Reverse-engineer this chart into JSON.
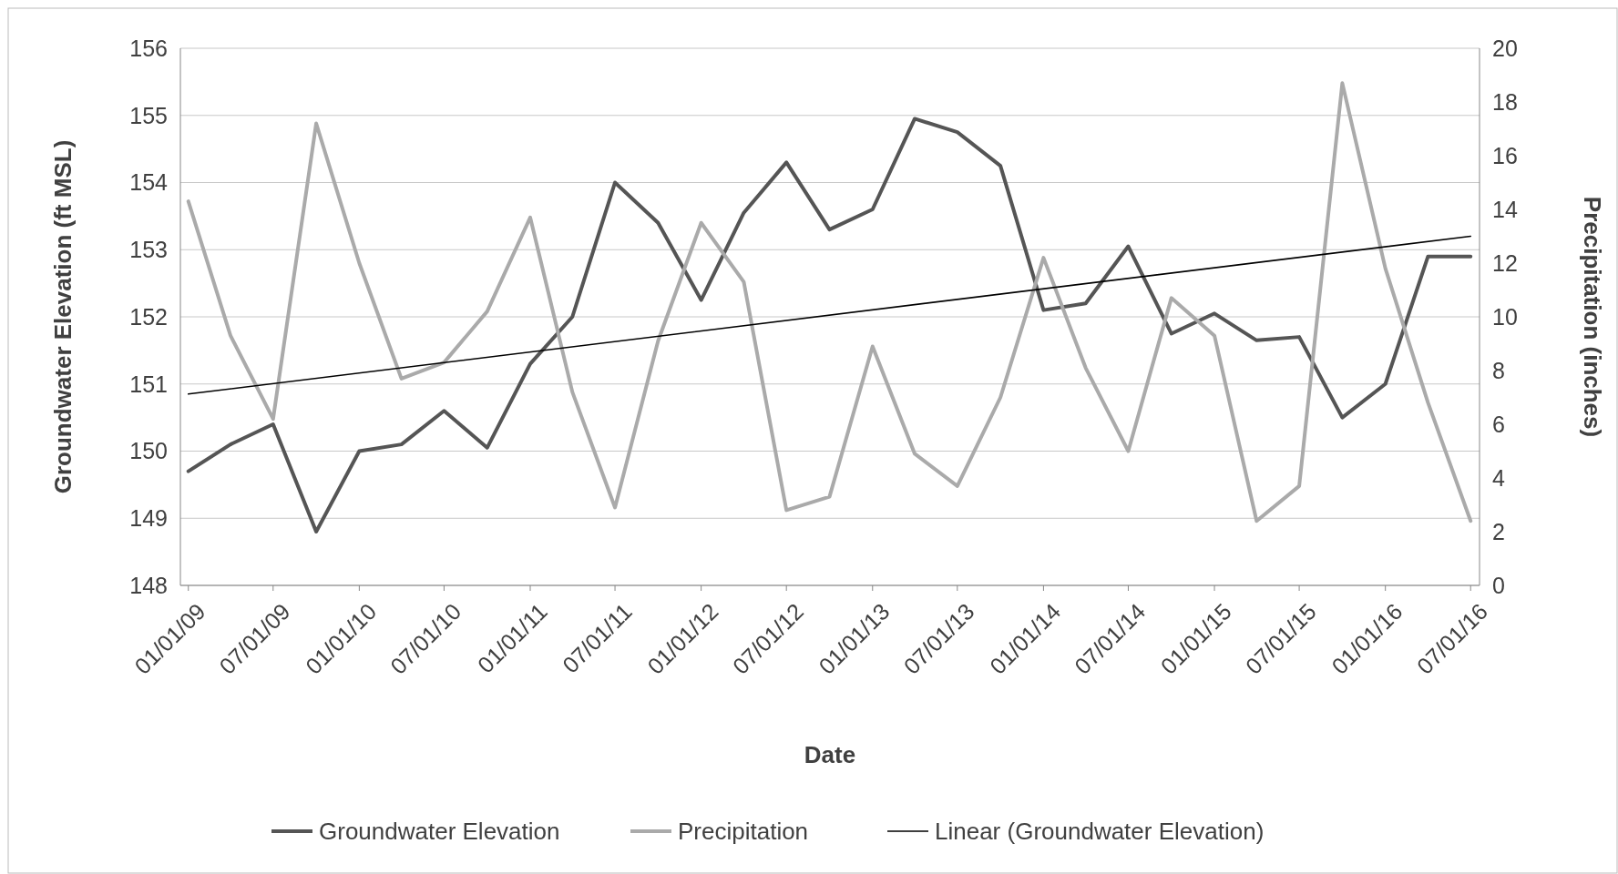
{
  "chart_data": {
    "type": "line",
    "xlabel": "Date",
    "ylabel": "Groundwater Elevation (ft MSL)",
    "y2label": "Precipitation (inches)",
    "x": [
      "2009-01-01",
      "2009-04-01",
      "2009-07-01",
      "2009-10-01",
      "2010-01-01",
      "2010-04-01",
      "2010-07-01",
      "2010-10-01",
      "2011-01-01",
      "2011-04-01",
      "2011-07-01",
      "2011-10-01",
      "2012-01-01",
      "2012-04-01",
      "2012-07-01",
      "2012-10-01",
      "2013-01-01",
      "2013-04-01",
      "2013-07-01",
      "2013-10-01",
      "2014-01-01",
      "2014-04-01",
      "2014-07-01",
      "2014-10-01",
      "2015-01-01",
      "2015-04-01",
      "2015-07-01",
      "2015-10-01",
      "2016-01-01",
      "2016-04-01",
      "2016-07-01"
    ],
    "series": [
      {
        "name": "Groundwater Elevation",
        "color": "#555555",
        "values": [
          149.7,
          150.1,
          150.4,
          148.8,
          150.0,
          150.1,
          150.6,
          150.05,
          151.3,
          152.0,
          154.0,
          153.4,
          152.25,
          153.55,
          154.3,
          153.3,
          153.6,
          154.95,
          154.75,
          154.25,
          152.1,
          152.2,
          153.05,
          151.75,
          152.05,
          151.65,
          151.7,
          150.5,
          151.0,
          152.9,
          152.9
        ]
      },
      {
        "name": "Precipitation",
        "color": "#aaaaaa",
        "axis": "y2",
        "values": [
          14.3,
          9.3,
          6.2,
          17.2,
          12.0,
          7.7,
          8.3,
          10.2,
          13.7,
          7.2,
          2.9,
          9.1,
          13.5,
          11.3,
          2.8,
          3.3,
          8.9,
          4.9,
          3.7,
          7.0,
          12.2,
          8.1,
          5.0,
          10.7,
          9.3,
          2.4,
          3.7,
          18.7,
          11.8,
          6.8,
          2.4
        ]
      },
      {
        "name": "Linear (Groundwater Elevation)",
        "color": "#000000",
        "type": "line",
        "x": [
          "2009-01-01",
          "2016-07-01"
        ],
        "values": [
          150.85,
          153.2
        ]
      }
    ],
    "xlim": [
      "2008-12-15",
      "2016-07-20"
    ],
    "xticks": [
      {
        "value": "2009-01-01",
        "label": "01/01/09"
      },
      {
        "value": "2009-07-01",
        "label": "07/01/09"
      },
      {
        "value": "2010-01-01",
        "label": "01/01/10"
      },
      {
        "value": "2010-07-01",
        "label": "07/01/10"
      },
      {
        "value": "2011-01-01",
        "label": "01/01/11"
      },
      {
        "value": "2011-07-01",
        "label": "07/01/11"
      },
      {
        "value": "2012-01-01",
        "label": "01/01/12"
      },
      {
        "value": "2012-07-01",
        "label": "07/01/12"
      },
      {
        "value": "2013-01-01",
        "label": "01/01/13"
      },
      {
        "value": "2013-07-01",
        "label": "07/01/13"
      },
      {
        "value": "2014-01-01",
        "label": "01/01/14"
      },
      {
        "value": "2014-07-01",
        "label": "07/01/14"
      },
      {
        "value": "2015-01-01",
        "label": "01/01/15"
      },
      {
        "value": "2015-07-01",
        "label": "07/01/15"
      },
      {
        "value": "2016-01-01",
        "label": "01/01/16"
      },
      {
        "value": "2016-07-01",
        "label": "07/01/16"
      }
    ],
    "ylim": [
      148,
      156
    ],
    "yticks": [
      148,
      149,
      150,
      151,
      152,
      153,
      154,
      155,
      156
    ],
    "y2lim": [
      0,
      20
    ],
    "y2ticks": [
      0,
      2,
      4,
      6,
      8,
      10,
      12,
      14,
      16,
      18,
      20
    ],
    "grid": "y",
    "legend": "bottom",
    "marker": "none",
    "line_style": "solid"
  }
}
